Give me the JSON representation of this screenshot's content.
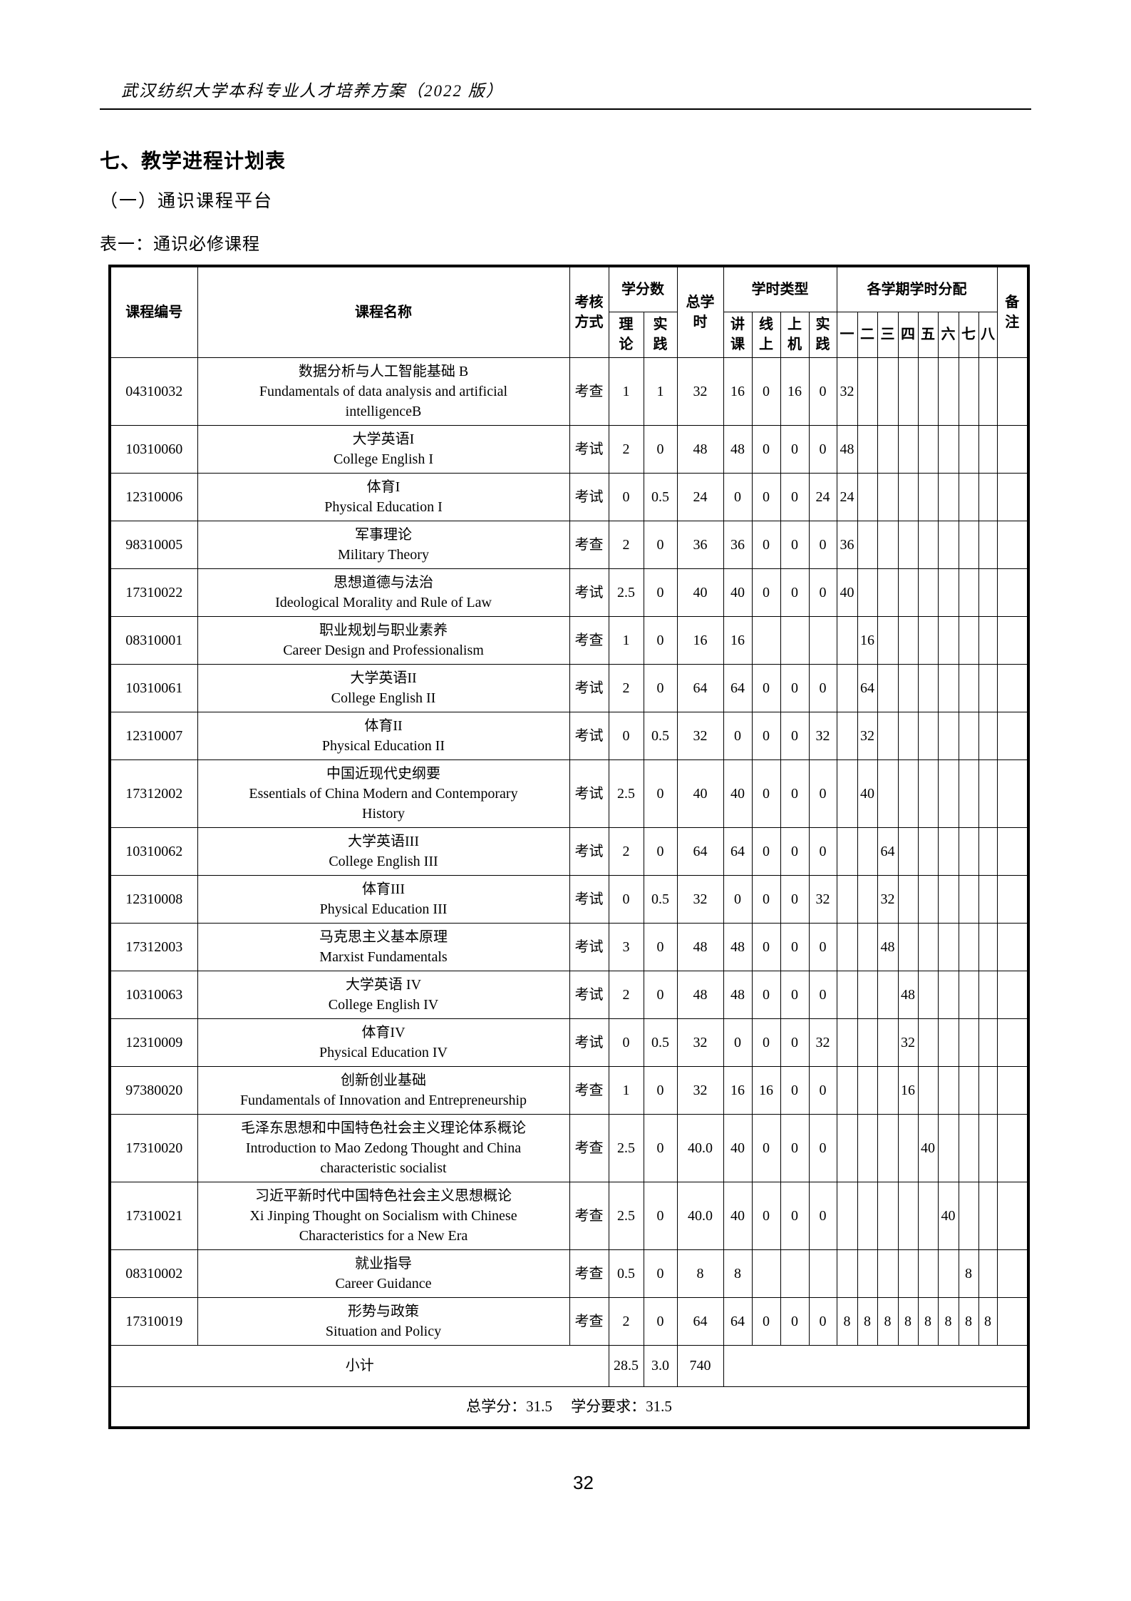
{
  "page": {
    "doc_header": "武汉纺织大学本科专业人才培养方案（2022 版）",
    "section_title": "七、教学进程计划表",
    "subsection_title": "（一）通识课程平台",
    "table_caption": "表一：通识必修课程",
    "page_number": "32"
  },
  "table": {
    "header": {
      "course_code": "课程编号",
      "course_name": "课程名称",
      "assessment": "考核\n方式",
      "credits_group": "学分数",
      "credit_theory": "理\n论",
      "credit_practice": "实\n践",
      "total_hours": "总学\n时",
      "hour_type_group": "学时类型",
      "hour_lecture": "讲\n课",
      "hour_online": "线\n上",
      "hour_computer": "上\n机",
      "hour_practice": "实\n践",
      "semester_group": "各学期学时分配",
      "semesters": [
        "一",
        "二",
        "三",
        "四",
        "五",
        "六",
        "七",
        "八"
      ],
      "remark": "备\n注"
    },
    "rows": [
      {
        "code": "04310032",
        "name_zh": "数据分析与人工智能基础 B",
        "name_en": "Fundamentals of data analysis and artificial\nintelligenceB",
        "assessment": "考查",
        "credit_theory": "1",
        "credit_practice": "1",
        "total_hours": "32",
        "lecture": "16",
        "online": "0",
        "computer": "16",
        "practice": "0",
        "sems": [
          "32",
          "",
          "",
          "",
          "",
          "",
          "",
          ""
        ],
        "remark": ""
      },
      {
        "code": "10310060",
        "name_zh": "大学英语I",
        "name_en": "College English I",
        "assessment": "考试",
        "credit_theory": "2",
        "credit_practice": "0",
        "total_hours": "48",
        "lecture": "48",
        "online": "0",
        "computer": "0",
        "practice": "0",
        "sems": [
          "48",
          "",
          "",
          "",
          "",
          "",
          "",
          ""
        ],
        "remark": ""
      },
      {
        "code": "12310006",
        "name_zh": "体育I",
        "name_en": "Physical Education I",
        "assessment": "考试",
        "credit_theory": "0",
        "credit_practice": "0.5",
        "total_hours": "24",
        "lecture": "0",
        "online": "0",
        "computer": "0",
        "practice": "24",
        "sems": [
          "24",
          "",
          "",
          "",
          "",
          "",
          "",
          ""
        ],
        "remark": ""
      },
      {
        "code": "98310005",
        "name_zh": "军事理论",
        "name_en": "Military Theory",
        "assessment": "考查",
        "credit_theory": "2",
        "credit_practice": "0",
        "total_hours": "36",
        "lecture": "36",
        "online": "0",
        "computer": "0",
        "practice": "0",
        "sems": [
          "36",
          "",
          "",
          "",
          "",
          "",
          "",
          ""
        ],
        "remark": ""
      },
      {
        "code": "17310022",
        "name_zh": "思想道德与法治",
        "name_en": "Ideological Morality and Rule of Law",
        "assessment": "考试",
        "credit_theory": "2.5",
        "credit_practice": "0",
        "total_hours": "40",
        "lecture": "40",
        "online": "0",
        "computer": "0",
        "practice": "0",
        "sems": [
          "40",
          "",
          "",
          "",
          "",
          "",
          "",
          ""
        ],
        "remark": ""
      },
      {
        "code": "08310001",
        "name_zh": "职业规划与职业素养",
        "name_en": "Career Design and Professionalism",
        "assessment": "考查",
        "credit_theory": "1",
        "credit_practice": "0",
        "total_hours": "16",
        "lecture": "16",
        "online": "",
        "computer": "",
        "practice": "",
        "sems": [
          "",
          "16",
          "",
          "",
          "",
          "",
          "",
          ""
        ],
        "remark": ""
      },
      {
        "code": "10310061",
        "name_zh": "大学英语II",
        "name_en": "College English II",
        "assessment": "考试",
        "credit_theory": "2",
        "credit_practice": "0",
        "total_hours": "64",
        "lecture": "64",
        "online": "0",
        "computer": "0",
        "practice": "0",
        "sems": [
          "",
          "64",
          "",
          "",
          "",
          "",
          "",
          ""
        ],
        "remark": ""
      },
      {
        "code": "12310007",
        "name_zh": "体育II",
        "name_en": "Physical Education II",
        "assessment": "考试",
        "credit_theory": "0",
        "credit_practice": "0.5",
        "total_hours": "32",
        "lecture": "0",
        "online": "0",
        "computer": "0",
        "practice": "32",
        "sems": [
          "",
          "32",
          "",
          "",
          "",
          "",
          "",
          ""
        ],
        "remark": ""
      },
      {
        "code": "17312002",
        "name_zh": "中国近现代史纲要",
        "name_en": "Essentials of China Modern and Contemporary\nHistory",
        "assessment": "考试",
        "credit_theory": "2.5",
        "credit_practice": "0",
        "total_hours": "40",
        "lecture": "40",
        "online": "0",
        "computer": "0",
        "practice": "0",
        "sems": [
          "",
          "40",
          "",
          "",
          "",
          "",
          "",
          ""
        ],
        "remark": ""
      },
      {
        "code": "10310062",
        "name_zh": "大学英语III",
        "name_en": "College English III",
        "assessment": "考试",
        "credit_theory": "2",
        "credit_practice": "0",
        "total_hours": "64",
        "lecture": "64",
        "online": "0",
        "computer": "0",
        "practice": "0",
        "sems": [
          "",
          "",
          "64",
          "",
          "",
          "",
          "",
          ""
        ],
        "remark": ""
      },
      {
        "code": "12310008",
        "name_zh": "体育III",
        "name_en": "Physical Education III",
        "assessment": "考试",
        "credit_theory": "0",
        "credit_practice": "0.5",
        "total_hours": "32",
        "lecture": "0",
        "online": "0",
        "computer": "0",
        "practice": "32",
        "sems": [
          "",
          "",
          "32",
          "",
          "",
          "",
          "",
          ""
        ],
        "remark": ""
      },
      {
        "code": "17312003",
        "name_zh": "马克思主义基本原理",
        "name_en": "Marxist Fundamentals",
        "assessment": "考试",
        "credit_theory": "3",
        "credit_practice": "0",
        "total_hours": "48",
        "lecture": "48",
        "online": "0",
        "computer": "0",
        "practice": "0",
        "sems": [
          "",
          "",
          "48",
          "",
          "",
          "",
          "",
          ""
        ],
        "remark": ""
      },
      {
        "code": "10310063",
        "name_zh": "大学英语 IV",
        "name_en": "College English IV",
        "assessment": "考试",
        "credit_theory": "2",
        "credit_practice": "0",
        "total_hours": "48",
        "lecture": "48",
        "online": "0",
        "computer": "0",
        "practice": "0",
        "sems": [
          "",
          "",
          "",
          "48",
          "",
          "",
          "",
          ""
        ],
        "remark": ""
      },
      {
        "code": "12310009",
        "name_zh": "体育IV",
        "name_en": "Physical Education IV",
        "assessment": "考试",
        "credit_theory": "0",
        "credit_practice": "0.5",
        "total_hours": "32",
        "lecture": "0",
        "online": "0",
        "computer": "0",
        "practice": "32",
        "sems": [
          "",
          "",
          "",
          "32",
          "",
          "",
          "",
          ""
        ],
        "remark": ""
      },
      {
        "code": "97380020",
        "name_zh": "创新创业基础",
        "name_en": "Fundamentals of Innovation and Entrepreneurship",
        "assessment": "考查",
        "credit_theory": "1",
        "credit_practice": "0",
        "total_hours": "32",
        "lecture": "16",
        "online": "16",
        "computer": "0",
        "practice": "0",
        "sems": [
          "",
          "",
          "",
          "16",
          "",
          "",
          "",
          ""
        ],
        "remark": ""
      },
      {
        "code": "17310020",
        "name_zh": "毛泽东思想和中国特色社会主义理论体系概论",
        "name_en": "Introduction to Mao Zedong Thought and China\ncharacteristic socialist",
        "assessment": "考查",
        "credit_theory": "2.5",
        "credit_practice": "0",
        "total_hours": "40.0",
        "lecture": "40",
        "online": "0",
        "computer": "0",
        "practice": "0",
        "sems": [
          "",
          "",
          "",
          "",
          "40",
          "",
          "",
          ""
        ],
        "remark": ""
      },
      {
        "code": "17310021",
        "name_zh": "习近平新时代中国特色社会主义思想概论",
        "name_en": "Xi Jinping Thought on Socialism with Chinese\nCharacteristics for a New Era",
        "assessment": "考查",
        "credit_theory": "2.5",
        "credit_practice": "0",
        "total_hours": "40.0",
        "lecture": "40",
        "online": "0",
        "computer": "0",
        "practice": "0",
        "sems": [
          "",
          "",
          "",
          "",
          "",
          "40",
          "",
          ""
        ],
        "remark": ""
      },
      {
        "code": "08310002",
        "name_zh": "就业指导",
        "name_en": "Career Guidance",
        "assessment": "考查",
        "credit_theory": "0.5",
        "credit_practice": "0",
        "total_hours": "8",
        "lecture": "8",
        "online": "",
        "computer": "",
        "practice": "",
        "sems": [
          "",
          "",
          "",
          "",
          "",
          "",
          "8",
          ""
        ],
        "remark": ""
      },
      {
        "code": "17310019",
        "name_zh": "形势与政策",
        "name_en": "Situation and Policy",
        "assessment": "考查",
        "credit_theory": "2",
        "credit_practice": "0",
        "total_hours": "64",
        "lecture": "64",
        "online": "0",
        "computer": "0",
        "practice": "0",
        "sems": [
          "8",
          "8",
          "8",
          "8",
          "8",
          "8",
          "8",
          "8"
        ],
        "remark": ""
      }
    ],
    "subtotal": {
      "label": "小计",
      "credit_theory": "28.5",
      "credit_practice": "3.0",
      "total_hours": "740"
    },
    "footer": "总学分：31.5　 学分要求：31.5"
  }
}
